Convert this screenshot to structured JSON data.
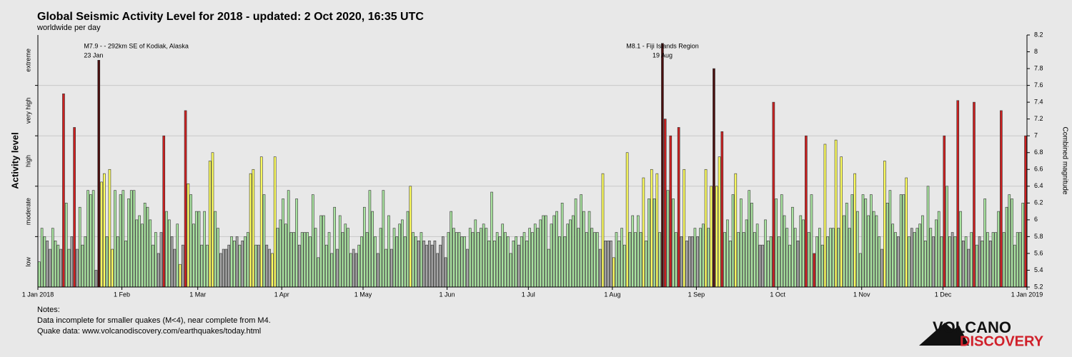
{
  "chart_data": {
    "type": "bar",
    "title": "Global Seismic Activity Level for 2018 - updated:  2 Oct 2020, 16:35 UTC",
    "subtitle": "worldwide per day",
    "y_label": "Activity level",
    "y2_label": "Combined magnitude",
    "notes": [
      "Notes:",
      "Data incomplete for smaller quakes (M<4), near complete from M4.",
      "Quake data: www.volcanodiscovery.com/earthquakes/today.html"
    ],
    "logo": [
      "VOLCANO",
      "DISCOVERY"
    ],
    "xlim": [
      "2018-01-01",
      "2019-01-01"
    ],
    "xticks": [
      {
        "value": "2018-01-01",
        "label": "1 Jan 2018"
      },
      {
        "value": "2018-02-01",
        "label": "1 Feb"
      },
      {
        "value": "2018-03-01",
        "label": "1 Mar"
      },
      {
        "value": "2018-04-01",
        "label": "1 Apr"
      },
      {
        "value": "2018-05-01",
        "label": "1 May"
      },
      {
        "value": "2018-06-01",
        "label": "1 Jun"
      },
      {
        "value": "2018-07-01",
        "label": "1 Jul"
      },
      {
        "value": "2018-08-01",
        "label": "1 Aug"
      },
      {
        "value": "2018-09-01",
        "label": "1 Sep"
      },
      {
        "value": "2018-10-01",
        "label": "1 Oct"
      },
      {
        "value": "2018-11-01",
        "label": "1 Nov"
      },
      {
        "value": "2018-12-01",
        "label": "1 Dec"
      },
      {
        "value": "2019-01-01",
        "label": "1 Jan 2019"
      }
    ],
    "ylim": [
      5.2,
      8.2
    ],
    "yticks": [
      5.2,
      5.4,
      5.6,
      5.8,
      6,
      6.2,
      6.4,
      6.6,
      6.8,
      7,
      7.2,
      7.4,
      7.6,
      7.8,
      8,
      8.2
    ],
    "grid": true,
    "levels": [
      {
        "label": "low",
        "range": [
          5.2,
          5.8
        ],
        "color": "#a6a6a6"
      },
      {
        "label": "moderate",
        "range": [
          5.8,
          6.4
        ],
        "color": "#a9e3a0"
      },
      {
        "label": "high",
        "range": [
          6.4,
          7.0
        ],
        "color": "#ffff60"
      },
      {
        "label": "very high",
        "range": [
          7.0,
          7.6
        ],
        "color": "#cc2020"
      },
      {
        "label": "extreme",
        "range": [
          7.6,
          8.2
        ],
        "color": "#4a0e0e"
      }
    ],
    "annotations": [
      {
        "text": "M7.9 - - 292km SE of Kodiak, Alaska",
        "date": "23 Jan",
        "x": "2018-01-23"
      },
      {
        "text": "M8.1 - Fiji Islands Region",
        "date": "19 Aug",
        "x": "2018-08-19"
      }
    ],
    "x": [
      "2018-01-01",
      "2018-01-02",
      "2018-01-03",
      "2018-01-04",
      "2018-01-05",
      "2018-01-06",
      "2018-01-07",
      "2018-01-08",
      "2018-01-09",
      "2018-01-10",
      "2018-01-11",
      "2018-01-12",
      "2018-01-13",
      "2018-01-14",
      "2018-01-15",
      "2018-01-16",
      "2018-01-17",
      "2018-01-18",
      "2018-01-19",
      "2018-01-20",
      "2018-01-21",
      "2018-01-22",
      "2018-01-23",
      "2018-01-24",
      "2018-01-25",
      "2018-01-26",
      "2018-01-27",
      "2018-01-28",
      "2018-01-29",
      "2018-01-30",
      "2018-01-31",
      "2018-02-01",
      "2018-02-02",
      "2018-02-03",
      "2018-02-04",
      "2018-02-05",
      "2018-02-06",
      "2018-02-07",
      "2018-02-08",
      "2018-02-09",
      "2018-02-10",
      "2018-02-11",
      "2018-02-12",
      "2018-02-13",
      "2018-02-14",
      "2018-02-15",
      "2018-02-16",
      "2018-02-17",
      "2018-02-18",
      "2018-02-19",
      "2018-02-20",
      "2018-02-21",
      "2018-02-22",
      "2018-02-23",
      "2018-02-24",
      "2018-02-25",
      "2018-02-26",
      "2018-02-27",
      "2018-02-28",
      "2018-03-01",
      "2018-03-02",
      "2018-03-03",
      "2018-03-04",
      "2018-03-05",
      "2018-03-06",
      "2018-03-07",
      "2018-03-08",
      "2018-03-09",
      "2018-03-10",
      "2018-03-11",
      "2018-03-12",
      "2018-03-13",
      "2018-03-14",
      "2018-03-15",
      "2018-03-16",
      "2018-03-17",
      "2018-03-18",
      "2018-03-19",
      "2018-03-20",
      "2018-03-21",
      "2018-03-22",
      "2018-03-23",
      "2018-03-24",
      "2018-03-25",
      "2018-03-26",
      "2018-03-27",
      "2018-03-28",
      "2018-03-29",
      "2018-03-30",
      "2018-03-31",
      "2018-04-01",
      "2018-04-02",
      "2018-04-03",
      "2018-04-04",
      "2018-04-05",
      "2018-04-06",
      "2018-04-07",
      "2018-04-08",
      "2018-04-09",
      "2018-04-10",
      "2018-04-11",
      "2018-04-12",
      "2018-04-13",
      "2018-04-14",
      "2018-04-15",
      "2018-04-16",
      "2018-04-17",
      "2018-04-18",
      "2018-04-19",
      "2018-04-20",
      "2018-04-21",
      "2018-04-22",
      "2018-04-23",
      "2018-04-24",
      "2018-04-25",
      "2018-04-26",
      "2018-04-27",
      "2018-04-28",
      "2018-04-29",
      "2018-04-30",
      "2018-05-01",
      "2018-05-02",
      "2018-05-03",
      "2018-05-04",
      "2018-05-05",
      "2018-05-06",
      "2018-05-07",
      "2018-05-08",
      "2018-05-09",
      "2018-05-10",
      "2018-05-11",
      "2018-05-12",
      "2018-05-13",
      "2018-05-14",
      "2018-05-15",
      "2018-05-16",
      "2018-05-17",
      "2018-05-18",
      "2018-05-19",
      "2018-05-20",
      "2018-05-21",
      "2018-05-22",
      "2018-05-23",
      "2018-05-24",
      "2018-05-25",
      "2018-05-26",
      "2018-05-27",
      "2018-05-28",
      "2018-05-29",
      "2018-05-30",
      "2018-05-31",
      "2018-06-01",
      "2018-06-02",
      "2018-06-03",
      "2018-06-04",
      "2018-06-05",
      "2018-06-06",
      "2018-06-07",
      "2018-06-08",
      "2018-06-09",
      "2018-06-10",
      "2018-06-11",
      "2018-06-12",
      "2018-06-13",
      "2018-06-14",
      "2018-06-15",
      "2018-06-16",
      "2018-06-17",
      "2018-06-18",
      "2018-06-19",
      "2018-06-20",
      "2018-06-21",
      "2018-06-22",
      "2018-06-23",
      "2018-06-24",
      "2018-06-25",
      "2018-06-26",
      "2018-06-27",
      "2018-06-28",
      "2018-06-29",
      "2018-06-30",
      "2018-07-01",
      "2018-07-02",
      "2018-07-03",
      "2018-07-04",
      "2018-07-05",
      "2018-07-06",
      "2018-07-07",
      "2018-07-08",
      "2018-07-09",
      "2018-07-10",
      "2018-07-11",
      "2018-07-12",
      "2018-07-13",
      "2018-07-14",
      "2018-07-15",
      "2018-07-16",
      "2018-07-17",
      "2018-07-18",
      "2018-07-19",
      "2018-07-20",
      "2018-07-21",
      "2018-07-22",
      "2018-07-23",
      "2018-07-24",
      "2018-07-25",
      "2018-07-26",
      "2018-07-27",
      "2018-07-28",
      "2018-07-29",
      "2018-07-30",
      "2018-07-31",
      "2018-08-01",
      "2018-08-02",
      "2018-08-03",
      "2018-08-04",
      "2018-08-05",
      "2018-08-06",
      "2018-08-07",
      "2018-08-08",
      "2018-08-09",
      "2018-08-10",
      "2018-08-11",
      "2018-08-12",
      "2018-08-13",
      "2018-08-14",
      "2018-08-15",
      "2018-08-16",
      "2018-08-17",
      "2018-08-18",
      "2018-08-19",
      "2018-08-20",
      "2018-08-21",
      "2018-08-22",
      "2018-08-23",
      "2018-08-24",
      "2018-08-25",
      "2018-08-26",
      "2018-08-27",
      "2018-08-28",
      "2018-08-29",
      "2018-08-30",
      "2018-08-31",
      "2018-09-01",
      "2018-09-02",
      "2018-09-03",
      "2018-09-04",
      "2018-09-05",
      "2018-09-06",
      "2018-09-07",
      "2018-09-08",
      "2018-09-09",
      "2018-09-10",
      "2018-09-11",
      "2018-09-12",
      "2018-09-13",
      "2018-09-14",
      "2018-09-15",
      "2018-09-16",
      "2018-09-17",
      "2018-09-18",
      "2018-09-19",
      "2018-09-20",
      "2018-09-21",
      "2018-09-22",
      "2018-09-23",
      "2018-09-24",
      "2018-09-25",
      "2018-09-26",
      "2018-09-27",
      "2018-09-28",
      "2018-09-29",
      "2018-09-30",
      "2018-10-01",
      "2018-10-02",
      "2018-10-03",
      "2018-10-04",
      "2018-10-05",
      "2018-10-06",
      "2018-10-07",
      "2018-10-08",
      "2018-10-09",
      "2018-10-10",
      "2018-10-11",
      "2018-10-12",
      "2018-10-13",
      "2018-10-14",
      "2018-10-15",
      "2018-10-16",
      "2018-10-17",
      "2018-10-18",
      "2018-10-19",
      "2018-10-20",
      "2018-10-21",
      "2018-10-22",
      "2018-10-23",
      "2018-10-24",
      "2018-10-25",
      "2018-10-26",
      "2018-10-27",
      "2018-10-28",
      "2018-10-29",
      "2018-10-30",
      "2018-10-31",
      "2018-11-01",
      "2018-11-02",
      "2018-11-03",
      "2018-11-04",
      "2018-11-05",
      "2018-11-06",
      "2018-11-07",
      "2018-11-08",
      "2018-11-09",
      "2018-11-10",
      "2018-11-11",
      "2018-11-12",
      "2018-11-13",
      "2018-11-14",
      "2018-11-15",
      "2018-11-16",
      "2018-11-17",
      "2018-11-18",
      "2018-11-19",
      "2018-11-20",
      "2018-11-21",
      "2018-11-22",
      "2018-11-23",
      "2018-11-24",
      "2018-11-25",
      "2018-11-26",
      "2018-11-27",
      "2018-11-28",
      "2018-11-29",
      "2018-11-30",
      "2018-12-01",
      "2018-12-02",
      "2018-12-03",
      "2018-12-04",
      "2018-12-05",
      "2018-12-06",
      "2018-12-07",
      "2018-12-08",
      "2018-12-09",
      "2018-12-10",
      "2018-12-11",
      "2018-12-12",
      "2018-12-13",
      "2018-12-14",
      "2018-12-15",
      "2018-12-16",
      "2018-12-17",
      "2018-12-18",
      "2018-12-19",
      "2018-12-20",
      "2018-12-21",
      "2018-12-22",
      "2018-12-23",
      "2018-12-24",
      "2018-12-25",
      "2018-12-26",
      "2018-12-27",
      "2018-12-28",
      "2018-12-29",
      "2018-12-30",
      "2018-12-31"
    ],
    "values": [
      5.5,
      5.9,
      5.8,
      5.75,
      5.65,
      5.9,
      5.75,
      5.7,
      5.65,
      7.5,
      6.2,
      5.65,
      5.8,
      7.1,
      5.65,
      6.15,
      5.7,
      5.8,
      6.35,
      6.3,
      6.35,
      5.4,
      7.9,
      6.45,
      6.55,
      5.8,
      6.6,
      5.65,
      6.35,
      5.8,
      6.3,
      6.35,
      5.75,
      6.25,
      6.35,
      6.35,
      6.0,
      6.05,
      5.95,
      6.2,
      6.15,
      6.0,
      5.7,
      5.85,
      5.6,
      5.85,
      7.0,
      6.1,
      6.0,
      5.8,
      5.65,
      5.95,
      5.47,
      5.7,
      7.3,
      6.43,
      6.3,
      5.95,
      6.1,
      6.1,
      5.7,
      6.1,
      5.7,
      6.7,
      6.8,
      6.1,
      5.9,
      5.6,
      5.65,
      5.65,
      5.7,
      5.8,
      5.75,
      5.8,
      5.7,
      5.75,
      5.8,
      5.85,
      6.55,
      6.6,
      5.7,
      5.7,
      6.75,
      6.3,
      5.7,
      5.65,
      5.6,
      6.75,
      5.9,
      6.0,
      6.25,
      5.95,
      6.35,
      5.85,
      5.85,
      6.25,
      5.7,
      5.85,
      5.85,
      5.85,
      5.8,
      6.3,
      5.9,
      5.55,
      6.05,
      6.05,
      5.7,
      5.85,
      5.6,
      6.15,
      5.65,
      6.05,
      5.85,
      5.95,
      5.9,
      5.6,
      5.65,
      5.6,
      5.7,
      5.8,
      6.15,
      5.85,
      6.35,
      6.1,
      5.8,
      5.6,
      5.9,
      6.35,
      5.65,
      6.05,
      5.65,
      5.9,
      5.8,
      5.95,
      6.0,
      5.8,
      6.1,
      6.4,
      5.85,
      5.8,
      5.75,
      5.85,
      5.75,
      5.7,
      5.75,
      5.7,
      5.75,
      5.6,
      5.7,
      5.8,
      5.55,
      5.85,
      6.1,
      5.9,
      5.85,
      5.85,
      5.8,
      5.8,
      5.65,
      5.9,
      5.85,
      6.0,
      5.85,
      5.9,
      5.95,
      5.9,
      5.75,
      6.33,
      5.75,
      5.85,
      5.8,
      5.95,
      5.85,
      5.8,
      5.6,
      5.75,
      5.8,
      5.7,
      5.8,
      5.85,
      5.75,
      5.9,
      5.85,
      5.95,
      5.9,
      6.0,
      6.05,
      6.05,
      5.65,
      5.95,
      6.05,
      6.1,
      5.8,
      6.2,
      5.8,
      5.95,
      6.0,
      6.05,
      6.25,
      5.9,
      6.3,
      6.1,
      5.85,
      6.1,
      5.9,
      5.85,
      5.85,
      5.65,
      6.55,
      5.75,
      5.75,
      5.75,
      5.55,
      5.85,
      5.75,
      5.9,
      5.7,
      6.8,
      5.85,
      6.05,
      5.85,
      6.05,
      5.85,
      6.5,
      5.75,
      6.25,
      6.6,
      6.25,
      6.55,
      5.85,
      8.1,
      7.2,
      6.35,
      7.0,
      6.25,
      5.85,
      7.1,
      5.8,
      6.6,
      5.75,
      5.8,
      5.8,
      5.9,
      5.8,
      5.9,
      5.95,
      6.6,
      5.9,
      6.4,
      7.8,
      6.4,
      6.75,
      7.05,
      5.85,
      6.0,
      5.75,
      6.3,
      6.55,
      5.85,
      6.25,
      5.85,
      6.0,
      6.35,
      6.2,
      5.85,
      5.95,
      5.7,
      5.7,
      6.0,
      5.75,
      5.8,
      7.4,
      6.25,
      5.8,
      6.3,
      6.05,
      5.9,
      5.7,
      6.15,
      5.9,
      5.75,
      6.05,
      6.0,
      7.0,
      5.85,
      6.3,
      5.6,
      5.8,
      5.9,
      5.7,
      6.9,
      5.8,
      5.9,
      5.9,
      6.95,
      5.9,
      6.75,
      6.05,
      6.2,
      5.9,
      6.3,
      6.55,
      6.1,
      5.6,
      6.3,
      6.25,
      6.05,
      6.3,
      6.1,
      6.05,
      5.8,
      5.65,
      6.7,
      6.2,
      6.35,
      5.95,
      5.85,
      5.8,
      6.3,
      6.3,
      6.5,
      5.8,
      5.9,
      5.85,
      5.9,
      5.95,
      6.05,
      5.75,
      6.4,
      5.9,
      5.8,
      6.0,
      6.1,
      5.8,
      7.0,
      6.4,
      5.8,
      5.85,
      5.8,
      7.42,
      6.1,
      5.75,
      5.8,
      5.65,
      5.85,
      7.4,
      5.7,
      5.8,
      5.75,
      6.25,
      5.85,
      5.75,
      5.85,
      5.85,
      6.1,
      7.3,
      5.85,
      6.15,
      6.3,
      6.25,
      5.7,
      5.85,
      5.85,
      6.2,
      7.0
    ],
    "bar_levels": [
      1,
      1,
      1,
      0,
      0,
      1,
      1,
      1,
      0,
      3,
      1,
      1,
      0,
      3,
      0,
      1,
      1,
      1,
      1,
      1,
      1,
      0,
      4,
      2,
      2,
      1,
      2,
      2,
      1,
      1,
      1,
      1,
      1,
      1,
      1,
      1,
      1,
      1,
      1,
      1,
      1,
      1,
      1,
      1,
      0,
      0,
      3,
      1,
      1,
      0,
      0,
      1,
      2,
      0,
      3,
      2,
      1,
      1,
      1,
      1,
      1,
      1,
      1,
      2,
      2,
      1,
      1,
      0,
      0,
      0,
      0,
      1,
      1,
      0,
      1,
      0,
      1,
      1,
      2,
      2,
      1,
      0,
      2,
      1,
      0,
      0,
      2,
      2,
      1,
      1,
      1,
      1,
      1,
      1,
      1,
      1,
      0,
      1,
      1,
      1,
      1,
      1,
      1,
      1,
      1,
      1,
      1,
      1,
      1,
      1,
      0,
      1,
      1,
      1,
      1,
      1,
      0,
      0,
      1,
      1,
      1,
      1,
      1,
      1,
      1,
      0,
      1,
      1,
      1,
      1,
      0,
      1,
      1,
      1,
      1,
      1,
      1,
      2,
      1,
      1,
      0,
      1,
      0,
      0,
      0,
      0,
      0,
      0,
      0,
      0,
      0,
      1,
      1,
      1,
      1,
      1,
      1,
      1,
      0,
      1,
      1,
      1,
      1,
      1,
      1,
      1,
      1,
      1,
      1,
      1,
      1,
      1,
      1,
      1,
      1,
      1,
      1,
      0,
      1,
      1,
      1,
      1,
      1,
      1,
      1,
      1,
      1,
      1,
      1,
      1,
      1,
      1,
      1,
      1,
      1,
      1,
      1,
      1,
      1,
      1,
      1,
      1,
      1,
      1,
      1,
      1,
      1,
      0,
      2,
      0,
      0,
      0,
      2,
      1,
      1,
      1,
      1,
      2,
      1,
      1,
      1,
      1,
      1,
      2,
      1,
      1,
      2,
      1,
      2,
      1,
      4,
      3,
      1,
      3,
      1,
      1,
      3,
      0,
      2,
      0,
      0,
      0,
      1,
      0,
      1,
      1,
      2,
      1,
      2,
      4,
      2,
      2,
      3,
      1,
      1,
      1,
      1,
      2,
      1,
      1,
      1,
      1,
      1,
      1,
      1,
      1,
      0,
      0,
      1,
      1,
      1,
      3,
      1,
      1,
      1,
      1,
      1,
      1,
      1,
      1,
      0,
      1,
      1,
      3,
      1,
      1,
      3,
      1,
      1,
      1,
      2,
      1,
      1,
      1,
      2,
      1,
      2,
      1,
      1,
      1,
      1,
      2,
      1,
      1,
      1,
      1,
      1,
      1,
      1,
      1,
      1,
      0,
      2,
      1,
      1,
      1,
      1,
      0,
      1,
      1,
      2,
      1,
      0,
      1,
      1,
      1,
      1,
      1,
      1,
      1,
      0,
      1,
      1,
      1,
      3,
      1,
      1,
      0,
      1,
      3,
      1,
      0,
      1,
      0,
      1,
      3,
      1,
      0,
      1,
      1,
      1,
      0,
      1,
      1,
      1,
      3,
      1,
      1,
      1,
      1,
      1,
      1,
      1,
      1,
      3
    ]
  }
}
